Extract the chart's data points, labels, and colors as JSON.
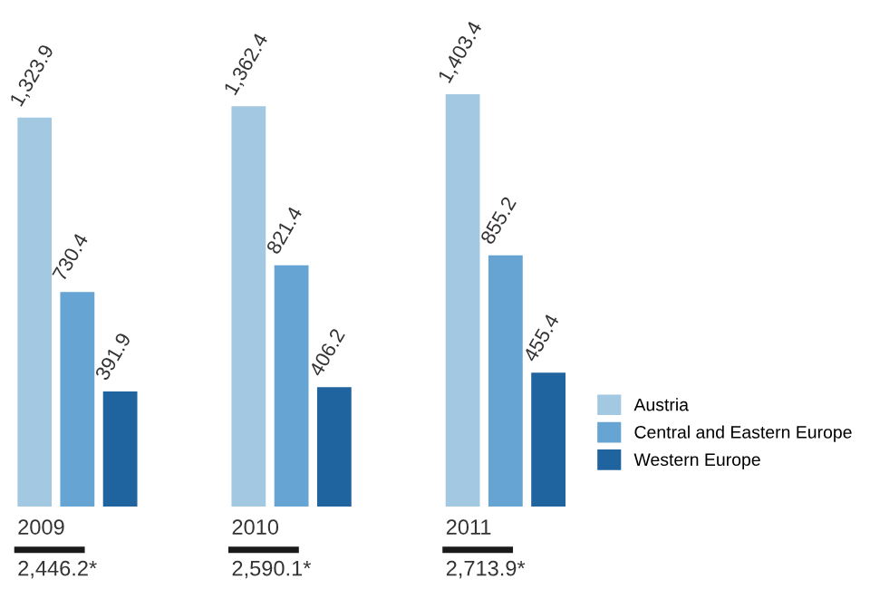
{
  "chart_data": {
    "type": "bar",
    "categories": [
      "2009",
      "2010",
      "2011"
    ],
    "series": [
      {
        "name": "Austria",
        "color": "#a2c8e2",
        "values": [
          1323.9,
          1362.4,
          1403.4
        ],
        "value_labels": [
          "1,323.9",
          "1,362.4",
          "1,403.4"
        ]
      },
      {
        "name": "Central and Eastern Europe",
        "color": "#66a4d3",
        "values": [
          730.4,
          821.4,
          855.2
        ],
        "value_labels": [
          "730.4",
          "821.4",
          "855.2"
        ]
      },
      {
        "name": "Western Europe",
        "color": "#20649f",
        "values": [
          391.9,
          406.2,
          455.4
        ],
        "value_labels": [
          "391.9",
          "406.2",
          "455.4"
        ]
      }
    ],
    "totals": [
      "2,446.2*",
      "2,590.1*",
      "2,713.9*"
    ],
    "legend": "right"
  }
}
